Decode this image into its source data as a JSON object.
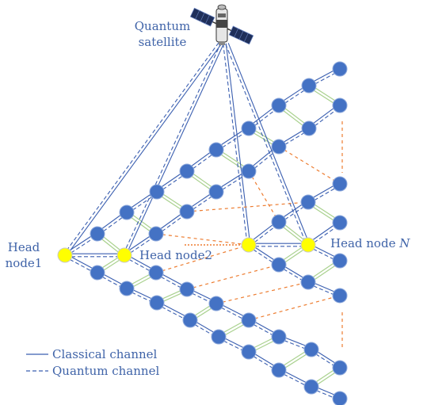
{
  "labels": {
    "satellite_line1": "Quantum",
    "satellite_line2": "satellite",
    "head1_line1": "Head",
    "head1_line2": "node1",
    "head2": "Head node2",
    "headN_prefix": "Head node ",
    "headN_italic": "N"
  },
  "legend": {
    "classical": "Classical channel",
    "quantum": "Quantum channel"
  },
  "colors": {
    "node": "#4472c4",
    "node_stroke": "#8faadc",
    "head_node": "#ffff00",
    "head_stroke": "#c9c9c9",
    "channel": "#3b5fb0",
    "rung": "#a9d18e",
    "link_orange": "#ed7d31",
    "text": "#3f63a8"
  },
  "icons": {
    "satellite": "satellite-icon"
  }
}
